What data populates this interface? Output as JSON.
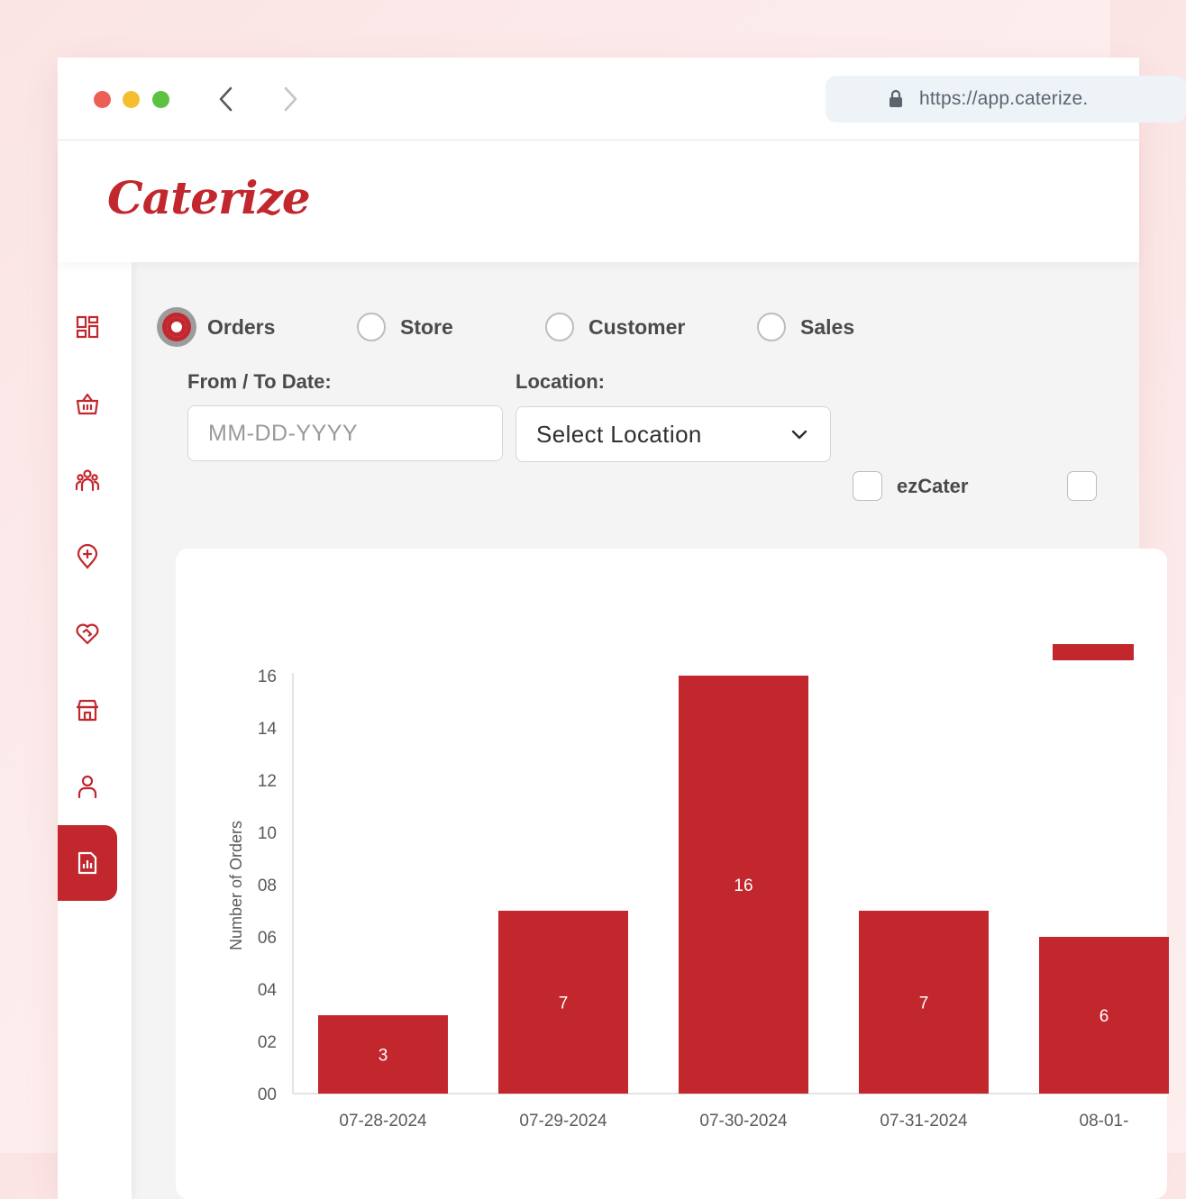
{
  "browser": {
    "url": "https://app.caterize.",
    "icons": [
      "back-arrow-icon",
      "forward-arrow-icon",
      "lock-icon"
    ]
  },
  "app": {
    "logo_text": "Caterize"
  },
  "sidebar": {
    "items": [
      {
        "icon": "dashboard-icon",
        "active": false
      },
      {
        "icon": "basket-icon",
        "active": false
      },
      {
        "icon": "people-icon",
        "active": false
      },
      {
        "icon": "location-add-icon",
        "active": false
      },
      {
        "icon": "heart-handshake-icon",
        "active": false
      },
      {
        "icon": "store-icon",
        "active": false
      },
      {
        "icon": "user-icon",
        "active": false
      },
      {
        "icon": "report-chart-icon",
        "active": true
      }
    ],
    "accent_color": "#c1272d"
  },
  "filters": {
    "report_types": [
      {
        "label": "Orders",
        "checked": true
      },
      {
        "label": "Store",
        "checked": false
      },
      {
        "label": "Customer",
        "checked": false
      },
      {
        "label": "Sales",
        "checked": false
      }
    ],
    "date_label": "From / To Date:",
    "date_placeholder": "MM-DD-YYYY",
    "location_label": "Location:",
    "location_selected": "Select Location",
    "checkboxes": [
      {
        "label": "ezCater",
        "checked": false
      },
      {
        "label": "",
        "checked": false
      }
    ]
  },
  "chart_data": {
    "type": "bar",
    "ylabel": "Number of Orders",
    "xlabel": "",
    "ylim": [
      0,
      16
    ],
    "y_ticks": [
      "00",
      "02",
      "04",
      "06",
      "08",
      "10",
      "12",
      "14",
      "16"
    ],
    "categories": [
      "07-28-2024",
      "07-29-2024",
      "07-30-2024",
      "07-31-2024",
      "08-01-"
    ],
    "values": [
      3,
      7,
      16,
      7,
      6
    ],
    "data_labels": [
      "3",
      "7",
      "16",
      "7",
      "6"
    ],
    "bar_color": "#c1272d",
    "legend": {
      "position": "top-right",
      "color": "#c1272d"
    }
  }
}
